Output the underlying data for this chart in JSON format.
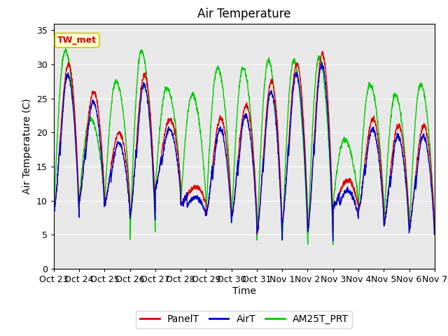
{
  "title": "Air Temperature",
  "ylabel": "Air Temperature (C)",
  "xlabel": "Time",
  "ylim": [
    0,
    36
  ],
  "yticks": [
    0,
    5,
    10,
    15,
    20,
    25,
    30,
    35
  ],
  "xlabels": [
    "Oct 23",
    "Oct 24",
    "Oct 25",
    "Oct 26",
    "Oct 27",
    "Oct 28",
    "Oct 29",
    "Oct 30",
    "Oct 31",
    "Nov 1",
    "Nov 2",
    "Nov 3",
    "Nov 4",
    "Nov 5",
    "Nov 6",
    "Nov 7"
  ],
  "annotation_text": "TW_met",
  "annotation_color": "#cc0000",
  "annotation_bg": "#ffffcc",
  "annotation_edge": "#cccc00",
  "line_colors": {
    "PanelT": "#dd0000",
    "AirT": "#0000cc",
    "AM25T_PRT": "#00cc00"
  },
  "line_widths": {
    "PanelT": 1.0,
    "AirT": 1.0,
    "AM25T_PRT": 1.0
  },
  "bg_color": "#e8e8e8",
  "plot_bg": "#e8e8e8",
  "title_fontsize": 12,
  "label_fontsize": 10,
  "tick_fontsize": 9,
  "legend_fontsize": 10,
  "figsize": [
    6.4,
    4.8
  ],
  "dpi": 100
}
